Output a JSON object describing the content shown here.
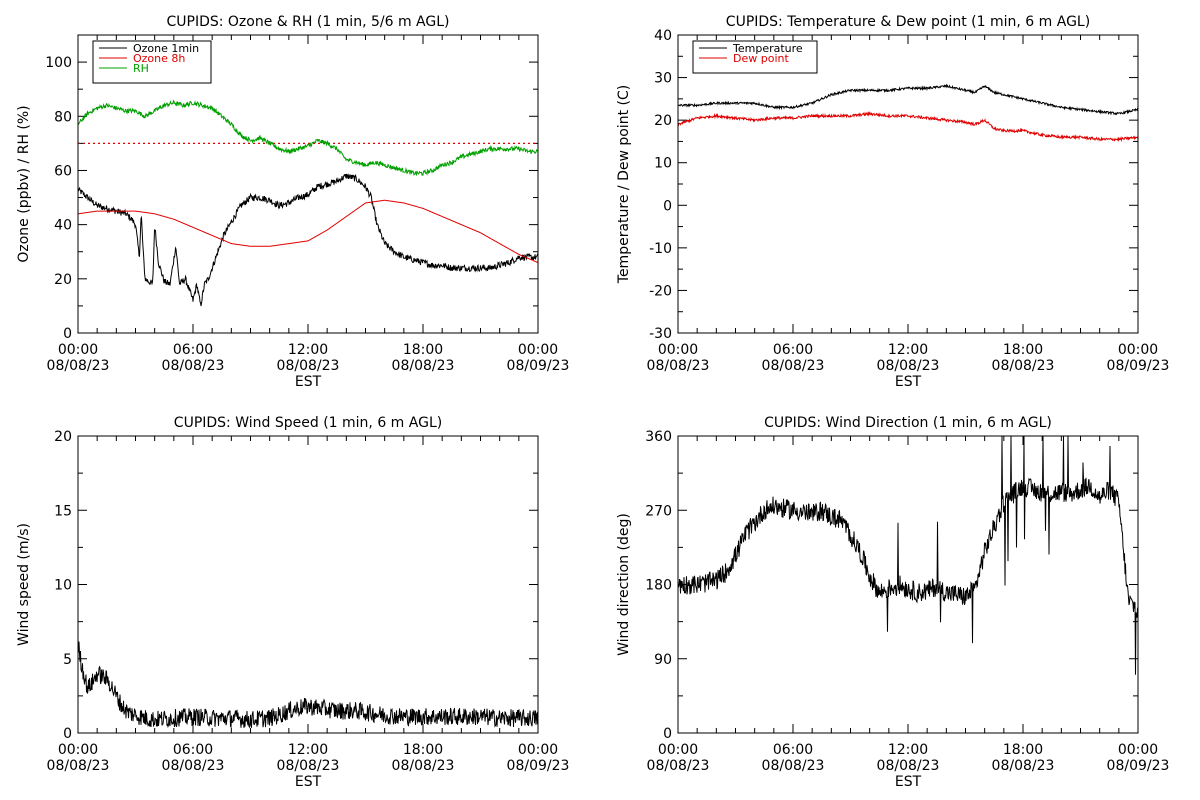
{
  "chart_data": [
    {
      "id": "ozone_rh",
      "type": "line",
      "title": "CUPIDS: Ozone & RH (1 min, 5/6 m AGL)",
      "ylabel": "Ozone (ppbv) / RH (%)",
      "xlabel": "EST",
      "x_unit": "hour",
      "xlim": [
        0,
        24
      ],
      "ylim": [
        0,
        110
      ],
      "yticks": [
        0,
        20,
        40,
        60,
        80,
        100
      ],
      "xticks": [
        {
          "h": 0,
          "time": "00:00",
          "date": "08/08/23"
        },
        {
          "h": 6,
          "time": "06:00",
          "date": "08/08/23"
        },
        {
          "h": 12,
          "time": "12:00",
          "date": "08/08/23"
        },
        {
          "h": 18,
          "time": "18:00",
          "date": "08/08/23"
        },
        {
          "h": 24,
          "time": "00:00",
          "date": "08/09/23"
        }
      ],
      "legend": "top-left",
      "reference_line": {
        "y": 70,
        "color": "#e00000",
        "style": "dotted"
      },
      "series": [
        {
          "name": "Ozone 1min",
          "color": "#000000",
          "noise": 1.2,
          "x": [
            0,
            0.5,
            1,
            1.5,
            2,
            2.5,
            2.8,
            3,
            3.2,
            3.3,
            3.4,
            3.5,
            3.7,
            3.9,
            4,
            4.2,
            4.5,
            4.8,
            5.1,
            5.3,
            5.6,
            5.9,
            6,
            6.2,
            6.4,
            6.6,
            6.8,
            7,
            7.3,
            7.6,
            8,
            8.5,
            9,
            9.5,
            10,
            10.5,
            11,
            11.5,
            12,
            12.5,
            13,
            13.5,
            14,
            14.5,
            15,
            15.3,
            15.6,
            16,
            16.5,
            17,
            17.5,
            18,
            18.5,
            19,
            19.5,
            20,
            20.5,
            21,
            21.5,
            22,
            22.5,
            23,
            23.5,
            24
          ],
          "y": [
            53,
            50,
            47,
            46,
            45,
            44,
            42,
            40,
            28,
            44,
            30,
            20,
            19,
            18,
            40,
            26,
            19,
            18,
            32,
            18,
            20,
            14,
            12,
            18,
            10,
            18,
            20,
            24,
            30,
            36,
            41,
            47,
            50,
            50,
            49,
            47,
            48,
            50,
            51,
            54,
            55,
            56,
            58,
            57,
            54,
            50,
            40,
            33,
            30,
            28,
            27,
            26,
            25,
            25,
            24,
            24,
            24,
            24,
            24,
            25,
            26,
            28,
            28,
            28
          ]
        },
        {
          "name": "Ozone 8h",
          "color": "#e00000",
          "noise": 0,
          "x": [
            0,
            1,
            2,
            3,
            4,
            5,
            6,
            7,
            8,
            9,
            10,
            11,
            12,
            13,
            14,
            15,
            16,
            17,
            18,
            19,
            20,
            21,
            22,
            23,
            24
          ],
          "y": [
            44,
            45,
            45,
            45,
            44,
            42,
            39,
            36,
            33,
            32,
            32,
            33,
            34,
            38,
            43,
            48,
            49,
            48,
            46,
            43,
            40,
            37,
            33,
            29,
            26
          ]
        },
        {
          "name": "RH",
          "color": "#00a000",
          "noise": 0.8,
          "x": [
            0,
            0.5,
            1,
            1.5,
            2,
            2.5,
            3,
            3.5,
            4,
            4.5,
            5,
            5.5,
            6,
            6.5,
            7,
            7.5,
            8,
            8.5,
            9,
            9.5,
            10,
            10.5,
            11,
            11.5,
            12,
            12.5,
            13,
            13.5,
            14,
            14.5,
            15,
            15.5,
            16,
            16.5,
            17,
            17.5,
            18,
            18.5,
            19,
            19.5,
            20,
            20.5,
            21,
            21.5,
            22,
            22.5,
            23,
            23.5,
            24
          ],
          "y": [
            77,
            81,
            83,
            84,
            83,
            82,
            82,
            80,
            82,
            84,
            85,
            84,
            85,
            84,
            83,
            80,
            77,
            73,
            71,
            72,
            70,
            68,
            67,
            68,
            69,
            71,
            70,
            68,
            64,
            63,
            62,
            63,
            62,
            61,
            60,
            59,
            59,
            60,
            62,
            63,
            65,
            66,
            67,
            68,
            68,
            68,
            68,
            67,
            67
          ]
        }
      ]
    },
    {
      "id": "temp_dew",
      "type": "line",
      "title": "CUPIDS: Temperature & Dew point (1 min, 6 m AGL)",
      "ylabel": "Temperature / Dew point (C)",
      "xlabel": "EST",
      "x_unit": "hour",
      "xlim": [
        0,
        24
      ],
      "ylim": [
        -30,
        40
      ],
      "yticks": [
        -30,
        -20,
        -10,
        0,
        10,
        20,
        30,
        40
      ],
      "xticks": [
        {
          "h": 0,
          "time": "00:00",
          "date": "08/08/23"
        },
        {
          "h": 6,
          "time": "06:00",
          "date": "08/08/23"
        },
        {
          "h": 12,
          "time": "12:00",
          "date": "08/08/23"
        },
        {
          "h": 18,
          "time": "18:00",
          "date": "08/08/23"
        },
        {
          "h": 24,
          "time": "00:00",
          "date": "08/09/23"
        }
      ],
      "legend": "top-left",
      "series": [
        {
          "name": "Temperature",
          "color": "#000000",
          "noise": 0.25,
          "x": [
            0,
            1,
            2,
            3,
            4,
            5,
            6,
            7,
            7.5,
            8,
            8.5,
            9,
            10,
            11,
            12,
            13,
            14,
            15,
            15.5,
            16,
            16.5,
            17,
            18,
            19,
            20,
            21,
            22,
            23,
            24
          ],
          "y": [
            23.5,
            23.5,
            24,
            24,
            24,
            23,
            23,
            24,
            25,
            26,
            26.5,
            27,
            27,
            27,
            27.5,
            27.5,
            28,
            27,
            26.5,
            28,
            26.5,
            26,
            25,
            24,
            23,
            22.5,
            22,
            21.5,
            22.5
          ]
        },
        {
          "name": "Dew point",
          "color": "#e00000",
          "noise": 0.3,
          "x": [
            0,
            1,
            2,
            3,
            4,
            5,
            6,
            7,
            8,
            9,
            10,
            11,
            12,
            13,
            14,
            15,
            15.5,
            16,
            16.5,
            17,
            18,
            19,
            20,
            21,
            22,
            23,
            24
          ],
          "y": [
            19,
            20.5,
            21,
            20.5,
            20,
            20.5,
            20.5,
            21,
            21,
            21,
            21.5,
            21,
            21,
            20.5,
            20,
            19.5,
            19,
            20,
            18,
            17.5,
            17.5,
            16.5,
            16,
            16,
            15.5,
            15.5,
            16
          ]
        }
      ]
    },
    {
      "id": "wind_speed",
      "type": "line",
      "title": "CUPIDS: Wind Speed (1 min, 6 m AGL)",
      "ylabel": "Wind speed (m/s)",
      "xlabel": "EST",
      "x_unit": "hour",
      "xlim": [
        0,
        24
      ],
      "ylim": [
        0,
        20
      ],
      "yticks": [
        0,
        5,
        10,
        15,
        20
      ],
      "xticks": [
        {
          "h": 0,
          "time": "00:00",
          "date": "08/08/23"
        },
        {
          "h": 6,
          "time": "06:00",
          "date": "08/08/23"
        },
        {
          "h": 12,
          "time": "12:00",
          "date": "08/08/23"
        },
        {
          "h": 18,
          "time": "18:00",
          "date": "08/08/23"
        },
        {
          "h": 24,
          "time": "00:00",
          "date": "08/09/23"
        }
      ],
      "series": [
        {
          "name": "",
          "color": "#000000",
          "noise": 0.6,
          "x": [
            0,
            0.2,
            0.5,
            0.8,
            1,
            1.3,
            1.6,
            2,
            2.3,
            2.6,
            3,
            3.5,
            4,
            5,
            6,
            7,
            8,
            9,
            10,
            10.5,
            11,
            11.5,
            12,
            12.5,
            13,
            13.5,
            14,
            14.5,
            15,
            15.5,
            16,
            17,
            18,
            19,
            20,
            21,
            22,
            23,
            23.5,
            24
          ],
          "y": [
            6,
            4.5,
            3,
            3.5,
            4,
            3.8,
            3.5,
            2.5,
            1.8,
            1.4,
            1.2,
            1,
            0.9,
            1,
            1.1,
            1,
            1,
            0.9,
            1,
            1.2,
            1.5,
            1.7,
            1.8,
            1.7,
            1.6,
            1.5,
            1.5,
            1.5,
            1.4,
            1.3,
            1.2,
            1.1,
            1.1,
            1.1,
            1.1,
            1.1,
            1.0,
            1.0,
            1.0,
            1.0
          ]
        }
      ]
    },
    {
      "id": "wind_dir",
      "type": "line",
      "title": "CUPIDS: Wind Direction (1 min, 6 m AGL)",
      "ylabel": "Wind direction (deg)",
      "xlabel": "EST",
      "x_unit": "hour",
      "xlim": [
        0,
        24
      ],
      "ylim": [
        0,
        360
      ],
      "yticks": [
        0,
        90,
        180,
        270,
        360
      ],
      "xticks": [
        {
          "h": 0,
          "time": "00:00",
          "date": "08/08/23"
        },
        {
          "h": 6,
          "time": "06:00",
          "date": "08/08/23"
        },
        {
          "h": 12,
          "time": "12:00",
          "date": "08/08/23"
        },
        {
          "h": 18,
          "time": "18:00",
          "date": "08/08/23"
        },
        {
          "h": 24,
          "time": "00:00",
          "date": "08/09/23"
        }
      ],
      "series": [
        {
          "name": "",
          "color": "#000000",
          "noise": 12,
          "x": [
            0,
            1,
            1.5,
            2,
            2.5,
            3,
            3.5,
            4,
            4.5,
            5,
            5.5,
            6,
            6.5,
            7,
            7.5,
            8,
            8.5,
            9,
            9.5,
            10,
            10.5,
            11,
            11.5,
            12,
            12.5,
            13,
            13.5,
            14,
            14.5,
            15,
            15.5,
            16,
            16.5,
            17,
            17.5,
            18,
            18.5,
            19,
            19.5,
            20,
            20.5,
            21,
            21.5,
            22,
            22.5,
            23,
            23.5,
            24
          ],
          "y": [
            180,
            180,
            182,
            185,
            195,
            215,
            240,
            255,
            270,
            275,
            272,
            270,
            268,
            265,
            270,
            262,
            258,
            240,
            220,
            190,
            170,
            175,
            180,
            175,
            170,
            172,
            178,
            170,
            168,
            165,
            175,
            220,
            250,
            280,
            290,
            300,
            295,
            292,
            290,
            292,
            290,
            295,
            300,
            285,
            295,
            280,
            160,
            150
          ]
        }
      ]
    }
  ]
}
